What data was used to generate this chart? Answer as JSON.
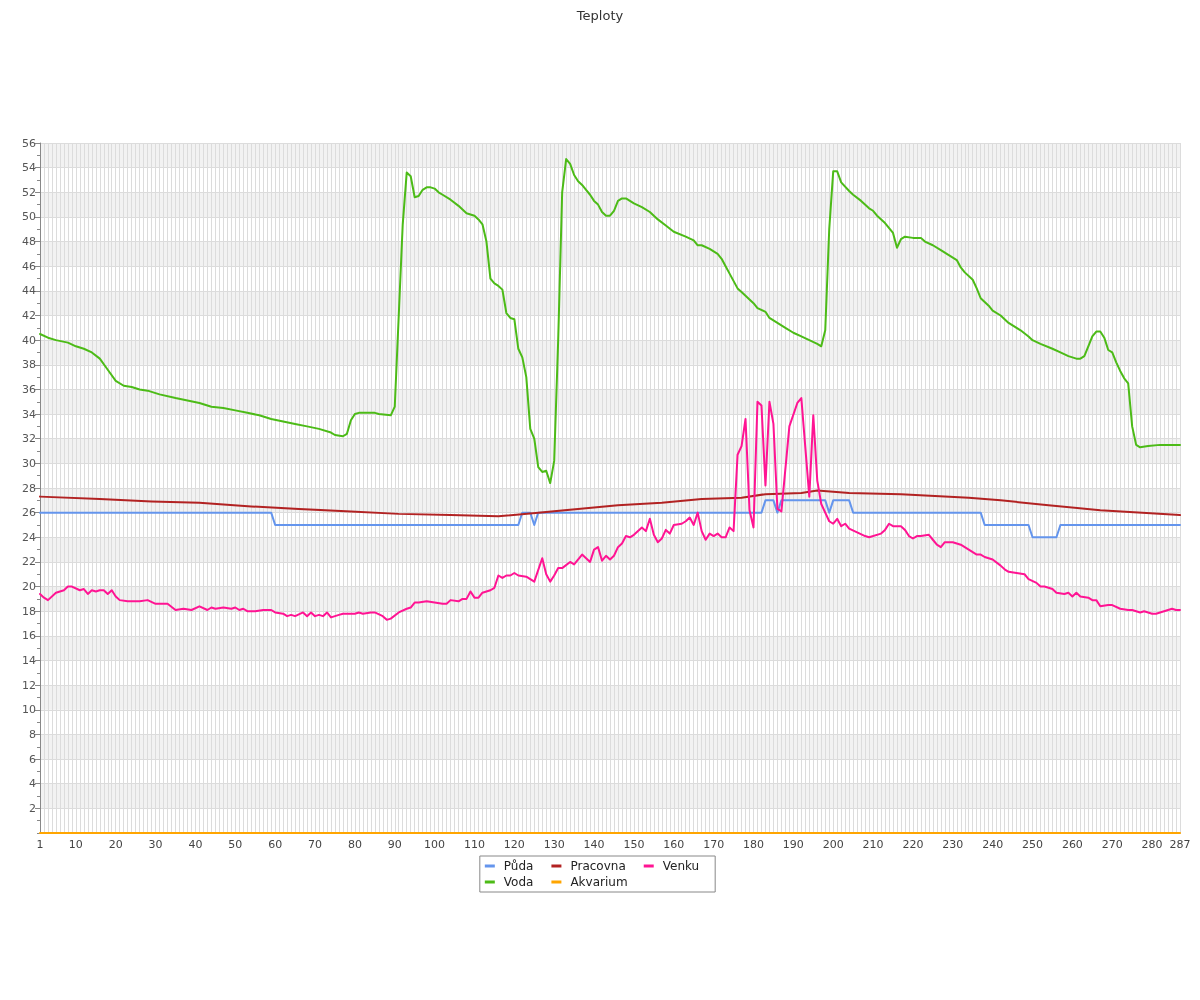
{
  "chart_data": {
    "type": "line",
    "title": "Teploty",
    "xlim": [
      1,
      287
    ],
    "xticks": [
      1,
      {
        "value": 2,
        "label": null
      },
      {
        "value": 3,
        "label": null
      },
      {
        "value": 4,
        "label": null
      },
      {
        "value": 5,
        "label": null
      },
      {
        "value": 6,
        "label": null
      },
      {
        "value": 7,
        "label": null
      },
      {
        "value": 8,
        "label": null
      },
      {
        "value": 9,
        "label": null
      },
      10,
      {
        "value": 11,
        "label": null
      },
      {
        "value": 12,
        "label": null
      },
      {
        "value": 13,
        "label": null
      },
      {
        "value": 14,
        "label": null
      },
      {
        "value": 15,
        "label": null
      },
      {
        "value": 16,
        "label": null
      },
      {
        "value": 17,
        "label": null
      },
      {
        "value": 18,
        "label": null
      },
      {
        "value": 19,
        "label": null
      },
      20,
      {
        "value": 21,
        "label": null
      },
      {
        "value": 22,
        "label": null
      },
      {
        "value": 23,
        "label": null
      },
      {
        "value": 24,
        "label": null
      },
      {
        "value": 25,
        "label": null
      },
      {
        "value": 26,
        "label": null
      },
      {
        "value": 27,
        "label": null
      },
      {
        "value": 28,
        "label": null
      },
      {
        "value": 29,
        "label": null
      },
      30,
      {
        "value": 31,
        "label": null
      },
      {
        "value": 32,
        "label": null
      },
      {
        "value": 33,
        "label": null
      },
      {
        "value": 34,
        "label": null
      },
      {
        "value": 35,
        "label": null
      },
      {
        "value": 36,
        "label": null
      },
      {
        "value": 37,
        "label": null
      },
      {
        "value": 38,
        "label": null
      },
      {
        "value": 39,
        "label": null
      },
      40,
      {
        "value": 41,
        "label": null
      },
      {
        "value": 42,
        "label": null
      },
      {
        "value": 43,
        "label": null
      },
      {
        "value": 44,
        "label": null
      },
      {
        "value": 45,
        "label": null
      },
      {
        "value": 46,
        "label": null
      },
      {
        "value": 47,
        "label": null
      },
      {
        "value": 48,
        "label": null
      },
      {
        "value": 49,
        "label": null
      },
      50,
      {
        "value": 51,
        "label": null
      },
      {
        "value": 52,
        "label": null
      },
      {
        "value": 53,
        "label": null
      },
      {
        "value": 54,
        "label": null
      },
      {
        "value": 55,
        "label": null
      },
      {
        "value": 56,
        "label": null
      },
      {
        "value": 57,
        "label": null
      },
      {
        "value": 58,
        "label": null
      },
      {
        "value": 59,
        "label": null
      },
      60,
      {
        "value": 61,
        "label": null
      },
      {
        "value": 62,
        "label": null
      },
      {
        "value": 63,
        "label": null
      },
      {
        "value": 64,
        "label": null
      },
      {
        "value": 65,
        "label": null
      },
      {
        "value": 66,
        "label": null
      },
      {
        "value": 67,
        "label": null
      },
      {
        "value": 68,
        "label": null
      },
      {
        "value": 69,
        "label": null
      },
      70,
      {
        "value": 71,
        "label": null
      },
      {
        "value": 72,
        "label": null
      },
      {
        "value": 73,
        "label": null
      },
      {
        "value": 74,
        "label": null
      },
      {
        "value": 75,
        "label": null
      },
      {
        "value": 76,
        "label": null
      },
      {
        "value": 77,
        "label": null
      },
      {
        "value": 78,
        "label": null
      },
      {
        "value": 79,
        "label": null
      },
      80,
      {
        "value": 81,
        "label": null
      },
      {
        "value": 82,
        "label": null
      },
      {
        "value": 83,
        "label": null
      },
      {
        "value": 84,
        "label": null
      },
      {
        "value": 85,
        "label": null
      },
      {
        "value": 86,
        "label": null
      },
      {
        "value": 87,
        "label": null
      },
      {
        "value": 88,
        "label": null
      },
      {
        "value": 89,
        "label": null
      },
      90,
      {
        "value": 91,
        "label": null
      },
      {
        "value": 92,
        "label": null
      },
      {
        "value": 93,
        "label": null
      },
      {
        "value": 94,
        "label": null
      },
      {
        "value": 95,
        "label": null
      },
      {
        "value": 96,
        "label": null
      },
      {
        "value": 97,
        "label": null
      },
      {
        "value": 98,
        "label": null
      },
      {
        "value": 99,
        "label": null
      },
      100,
      {
        "value": 101,
        "label": null
      },
      {
        "value": 102,
        "label": null
      },
      {
        "value": 103,
        "label": null
      },
      {
        "value": 104,
        "label": null
      },
      {
        "value": 105,
        "label": null
      },
      {
        "value": 106,
        "label": null
      },
      {
        "value": 107,
        "label": null
      },
      {
        "value": 108,
        "label": null
      },
      {
        "value": 109,
        "label": null
      },
      110,
      {
        "value": 111,
        "label": null
      },
      {
        "value": 112,
        "label": null
      },
      {
        "value": 113,
        "label": null
      },
      {
        "value": 114,
        "label": null
      },
      {
        "value": 115,
        "label": null
      },
      {
        "value": 116,
        "label": null
      },
      {
        "value": 117,
        "label": null
      },
      {
        "value": 118,
        "label": null
      },
      {
        "value": 119,
        "label": null
      },
      120,
      {
        "value": 121,
        "label": null
      },
      {
        "value": 122,
        "label": null
      },
      {
        "value": 123,
        "label": null
      },
      {
        "value": 124,
        "label": null
      },
      {
        "value": 125,
        "label": null
      },
      {
        "value": 126,
        "label": null
      },
      {
        "value": 127,
        "label": null
      },
      {
        "value": 128,
        "label": null
      },
      {
        "value": 129,
        "label": null
      },
      130,
      {
        "value": 131,
        "label": null
      },
      {
        "value": 132,
        "label": null
      },
      {
        "value": 133,
        "label": null
      },
      {
        "value": 134,
        "label": null
      },
      {
        "value": 135,
        "label": null
      },
      {
        "value": 136,
        "label": null
      },
      {
        "value": 137,
        "label": null
      },
      {
        "value": 138,
        "label": null
      },
      {
        "value": 139,
        "label": null
      },
      140,
      {
        "value": 141,
        "label": null
      },
      {
        "value": 142,
        "label": null
      },
      {
        "value": 143,
        "label": null
      },
      {
        "value": 144,
        "label": null
      },
      {
        "value": 145,
        "label": null
      },
      {
        "value": 146,
        "label": null
      },
      {
        "value": 147,
        "label": null
      },
      {
        "value": 148,
        "label": null
      },
      {
        "value": 149,
        "label": null
      },
      150,
      {
        "value": 151,
        "label": null
      },
      {
        "value": 152,
        "label": null
      },
      {
        "value": 153,
        "label": null
      },
      {
        "value": 154,
        "label": null
      },
      {
        "value": 155,
        "label": null
      },
      {
        "value": 156,
        "label": null
      },
      {
        "value": 157,
        "label": null
      },
      {
        "value": 158,
        "label": null
      },
      {
        "value": 159,
        "label": null
      },
      160,
      {
        "value": 161,
        "label": null
      },
      {
        "value": 162,
        "label": null
      },
      {
        "value": 163,
        "label": null
      },
      {
        "value": 164,
        "label": null
      },
      {
        "value": 165,
        "label": null
      },
      {
        "value": 166,
        "label": null
      },
      {
        "value": 167,
        "label": null
      },
      {
        "value": 168,
        "label": null
      },
      {
        "value": 169,
        "label": null
      },
      170,
      {
        "value": 171,
        "label": null
      },
      {
        "value": 172,
        "label": null
      },
      {
        "value": 173,
        "label": null
      },
      {
        "value": 174,
        "label": null
      },
      {
        "value": 175,
        "label": null
      },
      {
        "value": 176,
        "label": null
      },
      {
        "value": 177,
        "label": null
      },
      {
        "value": 178,
        "label": null
      },
      {
        "value": 179,
        "label": null
      },
      180,
      {
        "value": 181,
        "label": null
      },
      {
        "value": 182,
        "label": null
      },
      {
        "value": 183,
        "label": null
      },
      {
        "value": 184,
        "label": null
      },
      {
        "value": 185,
        "label": null
      },
      {
        "value": 186,
        "label": null
      },
      {
        "value": 187,
        "label": null
      },
      {
        "value": 188,
        "label": null
      },
      {
        "value": 189,
        "label": null
      },
      190,
      {
        "value": 191,
        "label": null
      },
      {
        "value": 192,
        "label": null
      },
      {
        "value": 193,
        "label": null
      },
      {
        "value": 194,
        "label": null
      },
      {
        "value": 195,
        "label": null
      },
      {
        "value": 196,
        "label": null
      },
      {
        "value": 197,
        "label": null
      },
      {
        "value": 198,
        "label": null
      },
      {
        "value": 199,
        "label": null
      },
      200,
      {
        "value": 201,
        "label": null
      },
      {
        "value": 202,
        "label": null
      },
      {
        "value": 203,
        "label": null
      },
      {
        "value": 204,
        "label": null
      },
      {
        "value": 205,
        "label": null
      },
      {
        "value": 206,
        "label": null
      },
      {
        "value": 207,
        "label": null
      },
      {
        "value": 208,
        "label": null
      },
      {
        "value": 209,
        "label": null
      },
      210,
      {
        "value": 211,
        "label": null
      },
      {
        "value": 212,
        "label": null
      },
      {
        "value": 213,
        "label": null
      },
      {
        "value": 214,
        "label": null
      },
      {
        "value": 215,
        "label": null
      },
      {
        "value": 216,
        "label": null
      },
      {
        "value": 217,
        "label": null
      },
      {
        "value": 218,
        "label": null
      },
      {
        "value": 219,
        "label": null
      },
      220,
      {
        "value": 221,
        "label": null
      },
      {
        "value": 222,
        "label": null
      },
      {
        "value": 223,
        "label": null
      },
      {
        "value": 224,
        "label": null
      },
      {
        "value": 225,
        "label": null
      },
      {
        "value": 226,
        "label": null
      },
      {
        "value": 227,
        "label": null
      },
      {
        "value": 228,
        "label": null
      },
      {
        "value": 229,
        "label": null
      },
      230,
      {
        "value": 231,
        "label": null
      },
      {
        "value": 232,
        "label": null
      },
      {
        "value": 233,
        "label": null
      },
      {
        "value": 234,
        "label": null
      },
      {
        "value": 235,
        "label": null
      },
      {
        "value": 236,
        "label": null
      },
      {
        "value": 237,
        "label": null
      },
      {
        "value": 238,
        "label": null
      },
      {
        "value": 239,
        "label": null
      },
      240,
      {
        "value": 241,
        "label": null
      },
      {
        "value": 242,
        "label": null
      },
      {
        "value": 243,
        "label": null
      },
      {
        "value": 244,
        "label": null
      },
      {
        "value": 245,
        "label": null
      },
      {
        "value": 246,
        "label": null
      },
      {
        "value": 247,
        "label": null
      },
      {
        "value": 248,
        "label": null
      },
      {
        "value": 249,
        "label": null
      },
      250,
      {
        "value": 251,
        "label": null
      },
      {
        "value": 252,
        "label": null
      },
      {
        "value": 253,
        "label": null
      },
      {
        "value": 254,
        "label": null
      },
      {
        "value": 255,
        "label": null
      },
      {
        "value": 256,
        "label": null
      },
      {
        "value": 257,
        "label": null
      },
      {
        "value": 258,
        "label": null
      },
      {
        "value": 259,
        "label": null
      },
      260,
      {
        "value": 261,
        "label": null
      },
      {
        "value": 262,
        "label": null
      },
      {
        "value": 263,
        "label": null
      },
      {
        "value": 264,
        "label": null
      },
      {
        "value": 265,
        "label": null
      },
      {
        "value": 266,
        "label": null
      },
      {
        "value": 267,
        "label": null
      },
      {
        "value": 268,
        "label": null
      },
      {
        "value": 269,
        "label": null
      },
      270,
      {
        "value": 271,
        "label": null
      },
      {
        "value": 272,
        "label": null
      },
      {
        "value": 273,
        "label": null
      },
      {
        "value": 274,
        "label": null
      },
      {
        "value": 275,
        "label": null
      },
      {
        "value": 276,
        "label": null
      },
      {
        "value": 277,
        "label": null
      },
      {
        "value": 278,
        "label": null
      },
      {
        "value": 279,
        "label": null
      },
      280,
      {
        "value": 281,
        "label": null
      },
      {
        "value": 282,
        "label": null
      },
      {
        "value": 283,
        "label": null
      },
      {
        "value": 284,
        "label": null
      },
      {
        "value": 285,
        "label": null
      },
      {
        "value": 286,
        "label": null
      },
      287
    ],
    "ylim": [
      0,
      56
    ],
    "yticks": [
      {
        "value": 0,
        "label": null
      },
      {
        "value": 1,
        "label": null
      },
      2,
      {
        "value": 3,
        "label": null
      },
      4,
      {
        "value": 5,
        "label": null
      },
      6,
      {
        "value": 7,
        "label": null
      },
      8,
      {
        "value": 9,
        "label": null
      },
      10,
      {
        "value": 11,
        "label": null
      },
      12,
      {
        "value": 13,
        "label": null
      },
      14,
      {
        "value": 15,
        "label": null
      },
      16,
      {
        "value": 17,
        "label": null
      },
      18,
      {
        "value": 19,
        "label": null
      },
      20,
      {
        "value": 21,
        "label": null
      },
      22,
      {
        "value": 23,
        "label": null
      },
      24,
      {
        "value": 25,
        "label": null
      },
      26,
      {
        "value": 27,
        "label": null
      },
      28,
      {
        "value": 29,
        "label": null
      },
      30,
      {
        "value": 31,
        "label": null
      },
      32,
      {
        "value": 33,
        "label": null
      },
      34,
      {
        "value": 35,
        "label": null
      },
      36,
      {
        "value": 37,
        "label": null
      },
      38,
      {
        "value": 39,
        "label": null
      },
      40,
      {
        "value": 41,
        "label": null
      },
      42,
      {
        "value": 43,
        "label": null
      },
      44,
      {
        "value": 45,
        "label": null
      },
      46,
      {
        "value": 47,
        "label": null
      },
      48,
      {
        "value": 49,
        "label": null
      },
      50,
      {
        "value": 51,
        "label": null
      },
      52,
      {
        "value": 53,
        "label": null
      },
      54,
      {
        "value": 55,
        "label": null
      },
      56
    ],
    "grid": true,
    "legend": "bottom",
    "series": [
      {
        "name": "Půda",
        "color": "#6495ed",
        "x": [
          1,
          59,
          60,
          121,
          122,
          124,
          125,
          126,
          182,
          183,
          185,
          186,
          187,
          198,
          199,
          200,
          204,
          205,
          237,
          238,
          249,
          250,
          256,
          257,
          287
        ],
        "values": [
          26,
          26,
          25,
          25,
          26,
          26,
          25,
          26,
          26,
          27,
          27,
          26,
          27,
          27,
          26,
          27,
          27,
          26,
          26,
          25,
          25,
          24,
          24,
          25,
          25
        ]
      },
      {
        "name": "Pracovna",
        "color": "#b22222",
        "x": [
          1,
          16,
          29,
          41,
          54,
          66,
          79,
          91,
          104,
          116,
          126,
          136,
          146,
          157,
          167,
          177,
          183,
          192,
          196,
          204,
          217,
          234,
          242,
          254,
          267,
          287
        ],
        "values": [
          27.3,
          27.1,
          26.9,
          26.8,
          26.5,
          26.3,
          26.1,
          25.9,
          25.8,
          25.7,
          26.0,
          26.3,
          26.6,
          26.8,
          27.1,
          27.2,
          27.5,
          27.6,
          27.8,
          27.6,
          27.5,
          27.2,
          27.0,
          26.6,
          26.2,
          25.8
        ]
      },
      {
        "name": "Venku",
        "color": "#ff1493",
        "x": [
          1,
          2,
          3,
          5,
          7,
          8,
          9,
          11,
          12,
          13,
          14,
          15,
          16,
          17,
          18,
          19,
          20,
          21,
          23,
          26,
          28,
          30,
          31,
          33,
          35,
          37,
          39,
          41,
          43,
          44,
          45,
          47,
          49,
          50,
          51,
          52,
          53,
          55,
          57,
          59,
          60,
          62,
          63,
          64,
          65,
          67,
          68,
          69,
          70,
          71,
          72,
          73,
          74,
          76,
          77,
          80,
          81,
          82,
          84,
          85,
          87,
          88,
          89,
          91,
          93,
          94,
          95,
          96,
          98,
          100,
          102,
          103,
          104,
          106,
          107,
          108,
          109,
          110,
          111,
          112,
          114,
          115,
          116,
          117,
          118,
          119,
          120,
          121,
          123,
          124,
          125,
          127,
          128,
          129,
          130,
          131,
          132,
          134,
          135,
          137,
          138,
          139,
          140,
          141,
          142,
          143,
          144,
          145,
          146,
          147,
          148,
          149,
          150,
          152,
          153,
          154,
          155,
          156,
          157,
          158,
          159,
          160,
          162,
          163,
          164,
          165,
          166,
          167,
          168,
          169,
          170,
          171,
          172,
          173,
          174,
          175,
          176,
          177,
          178,
          179,
          180,
          181,
          182,
          183,
          184,
          185,
          186,
          187,
          189,
          191,
          192,
          194,
          195,
          196,
          197,
          199,
          200,
          201,
          202,
          203,
          204,
          206,
          208,
          209,
          212,
          213,
          214,
          215,
          217,
          218,
          219,
          220,
          221,
          222,
          224,
          225,
          226,
          227,
          228,
          230,
          231,
          232,
          233,
          234,
          236,
          237,
          238,
          240,
          242,
          243,
          244,
          246,
          248,
          249,
          251,
          252,
          253,
          255,
          256,
          258,
          259,
          260,
          261,
          262,
          264,
          265,
          266,
          267,
          269,
          270,
          272,
          274,
          275,
          277,
          278,
          280,
          281,
          282,
          284,
          285,
          286,
          287
        ],
        "values": [
          19.4,
          19.1,
          18.9,
          19.5,
          19.7,
          20.0,
          20.0,
          19.7,
          19.8,
          19.4,
          19.7,
          19.6,
          19.7,
          19.7,
          19.4,
          19.7,
          19.2,
          18.9,
          18.8,
          18.8,
          18.9,
          18.6,
          18.6,
          18.6,
          18.1,
          18.2,
          18.1,
          18.4,
          18.1,
          18.3,
          18.2,
          18.3,
          18.2,
          18.3,
          18.1,
          18.2,
          18.0,
          18.0,
          18.1,
          18.1,
          17.9,
          17.8,
          17.6,
          17.7,
          17.6,
          17.9,
          17.6,
          17.9,
          17.6,
          17.7,
          17.6,
          17.9,
          17.5,
          17.7,
          17.8,
          17.8,
          17.9,
          17.8,
          17.9,
          17.9,
          17.6,
          17.3,
          17.4,
          17.9,
          18.2,
          18.3,
          18.7,
          18.7,
          18.8,
          18.7,
          18.6,
          18.6,
          18.9,
          18.8,
          19.0,
          19.0,
          19.6,
          19.1,
          19.1,
          19.5,
          19.7,
          19.9,
          20.9,
          20.7,
          20.9,
          20.9,
          21.1,
          20.9,
          20.8,
          20.6,
          20.4,
          22.3,
          21.0,
          20.4,
          20.9,
          21.5,
          21.5,
          22.0,
          21.8,
          22.6,
          22.3,
          22.0,
          23.0,
          23.2,
          22.1,
          22.5,
          22.2,
          22.5,
          23.2,
          23.5,
          24.1,
          24.0,
          24.2,
          24.8,
          24.5,
          25.5,
          24.2,
          23.6,
          23.9,
          24.6,
          24.3,
          25.0,
          25.1,
          25.3,
          25.6,
          25.0,
          26.0,
          24.5,
          23.8,
          24.3,
          24.1,
          24.3,
          24.0,
          24.0,
          24.8,
          24.5,
          30.7,
          31.4,
          33.6,
          26.2,
          24.8,
          35.0,
          34.7,
          28.2,
          35.0,
          33.2,
          26.3,
          26.1,
          33.0,
          34.9,
          35.3,
          27.3,
          33.9,
          28.6,
          26.7,
          25.3,
          25.1,
          25.5,
          24.9,
          25.1,
          24.7,
          24.4,
          24.1,
          24.0,
          24.3,
          24.6,
          25.1,
          24.9,
          24.9,
          24.6,
          24.1,
          23.9,
          24.1,
          24.1,
          24.2,
          23.8,
          23.4,
          23.2,
          23.6,
          23.6,
          23.5,
          23.4,
          23.2,
          23.0,
          22.6,
          22.6,
          22.4,
          22.2,
          21.7,
          21.4,
          21.2,
          21.1,
          21.0,
          20.6,
          20.3,
          20.0,
          20.0,
          19.8,
          19.5,
          19.4,
          19.5,
          19.2,
          19.5,
          19.2,
          19.1,
          18.9,
          18.9,
          18.4,
          18.5,
          18.5,
          18.2,
          18.1,
          18.1,
          17.9,
          18.0,
          17.8,
          17.8,
          17.9,
          18.1,
          18.2,
          18.1,
          18.1
        ]
      },
      {
        "name": "Voda",
        "color": "#4cbb17",
        "x": [
          1,
          3,
          5,
          8,
          10,
          12,
          14,
          16,
          18,
          20,
          22,
          24,
          26,
          28,
          31,
          35,
          38,
          41,
          44,
          47,
          50,
          53,
          56,
          59,
          62,
          65,
          68,
          71,
          74,
          75,
          77,
          78,
          79,
          80,
          81,
          85,
          86,
          89,
          90,
          92,
          93,
          94,
          95,
          96,
          97,
          98,
          99,
          100,
          101,
          102,
          104,
          106,
          107,
          108,
          109,
          110,
          111,
          112,
          113,
          114,
          115,
          116,
          117,
          118,
          119,
          120,
          121,
          122,
          123,
          124,
          125,
          126,
          127,
          128,
          129,
          130,
          131,
          132,
          133,
          134,
          135,
          136,
          137,
          138,
          139,
          140,
          141,
          142,
          143,
          144,
          145,
          146,
          147,
          148,
          149,
          150,
          152,
          154,
          155,
          156,
          158,
          160,
          163,
          165,
          166,
          167,
          169,
          171,
          172,
          173,
          174,
          176,
          177,
          178,
          180,
          181,
          183,
          184,
          186,
          188,
          190,
          192,
          194,
          196,
          197,
          198,
          199,
          200,
          201,
          202,
          204,
          205,
          207,
          209,
          210,
          211,
          213,
          215,
          216,
          217,
          218,
          220,
          222,
          223,
          225,
          227,
          229,
          231,
          232,
          233,
          235,
          236,
          237,
          239,
          240,
          242,
          244,
          247,
          249,
          250,
          252,
          255,
          257,
          259,
          261,
          262,
          263,
          264,
          265,
          266,
          267,
          268,
          269,
          270,
          271,
          272,
          273,
          274,
          275,
          276,
          277,
          279,
          282,
          287
        ],
        "values": [
          40.5,
          40.2,
          40.0,
          39.8,
          39.5,
          39.3,
          39.0,
          38.5,
          37.6,
          36.7,
          36.3,
          36.2,
          36.0,
          35.9,
          35.6,
          35.3,
          35.1,
          34.9,
          34.6,
          34.5,
          34.3,
          34.1,
          33.9,
          33.6,
          33.4,
          33.2,
          33.0,
          32.8,
          32.5,
          32.3,
          32.2,
          32.4,
          33.5,
          34.0,
          34.1,
          34.1,
          34.0,
          33.9,
          34.6,
          49.4,
          53.6,
          53.3,
          51.6,
          51.7,
          52.2,
          52.4,
          52.4,
          52.3,
          52.0,
          51.8,
          51.4,
          50.9,
          50.6,
          50.3,
          50.2,
          50.1,
          49.8,
          49.4,
          48.0,
          45.0,
          44.6,
          44.4,
          44.1,
          42.2,
          41.8,
          41.7,
          39.3,
          38.6,
          37.0,
          32.8,
          32.0,
          29.7,
          29.3,
          29.4,
          28.4,
          30.2,
          40.0,
          52.0,
          54.7,
          54.3,
          53.4,
          52.9,
          52.6,
          52.2,
          51.8,
          51.3,
          51.0,
          50.4,
          50.1,
          50.1,
          50.5,
          51.3,
          51.5,
          51.5,
          51.3,
          51.1,
          50.8,
          50.4,
          50.1,
          49.8,
          49.3,
          48.8,
          48.4,
          48.1,
          47.7,
          47.7,
          47.4,
          47.0,
          46.6,
          46.0,
          45.4,
          44.2,
          43.9,
          43.6,
          43.0,
          42.6,
          42.3,
          41.8,
          41.4,
          41.0,
          40.6,
          40.3,
          40.0,
          39.7,
          39.5,
          40.8,
          49.0,
          53.7,
          53.7,
          52.8,
          52.1,
          51.8,
          51.3,
          50.7,
          50.5,
          50.1,
          49.5,
          48.7,
          47.5,
          48.2,
          48.4,
          48.3,
          48.3,
          48.0,
          47.7,
          47.3,
          46.9,
          46.5,
          45.9,
          45.5,
          44.9,
          44.2,
          43.4,
          42.8,
          42.4,
          42.0,
          41.4,
          40.8,
          40.3,
          40.0,
          39.7,
          39.3,
          39.0,
          38.7,
          38.5,
          38.5,
          38.7,
          39.5,
          40.3,
          40.7,
          40.7,
          40.2,
          39.2,
          39.0,
          38.2,
          37.5,
          36.9,
          36.5,
          33.0,
          31.5,
          31.3,
          31.4,
          31.5,
          31.5
        ]
      },
      {
        "name": "Akvarium",
        "color": "#ffa500",
        "x": [
          1,
          287
        ],
        "values": [
          0,
          0
        ]
      }
    ]
  }
}
